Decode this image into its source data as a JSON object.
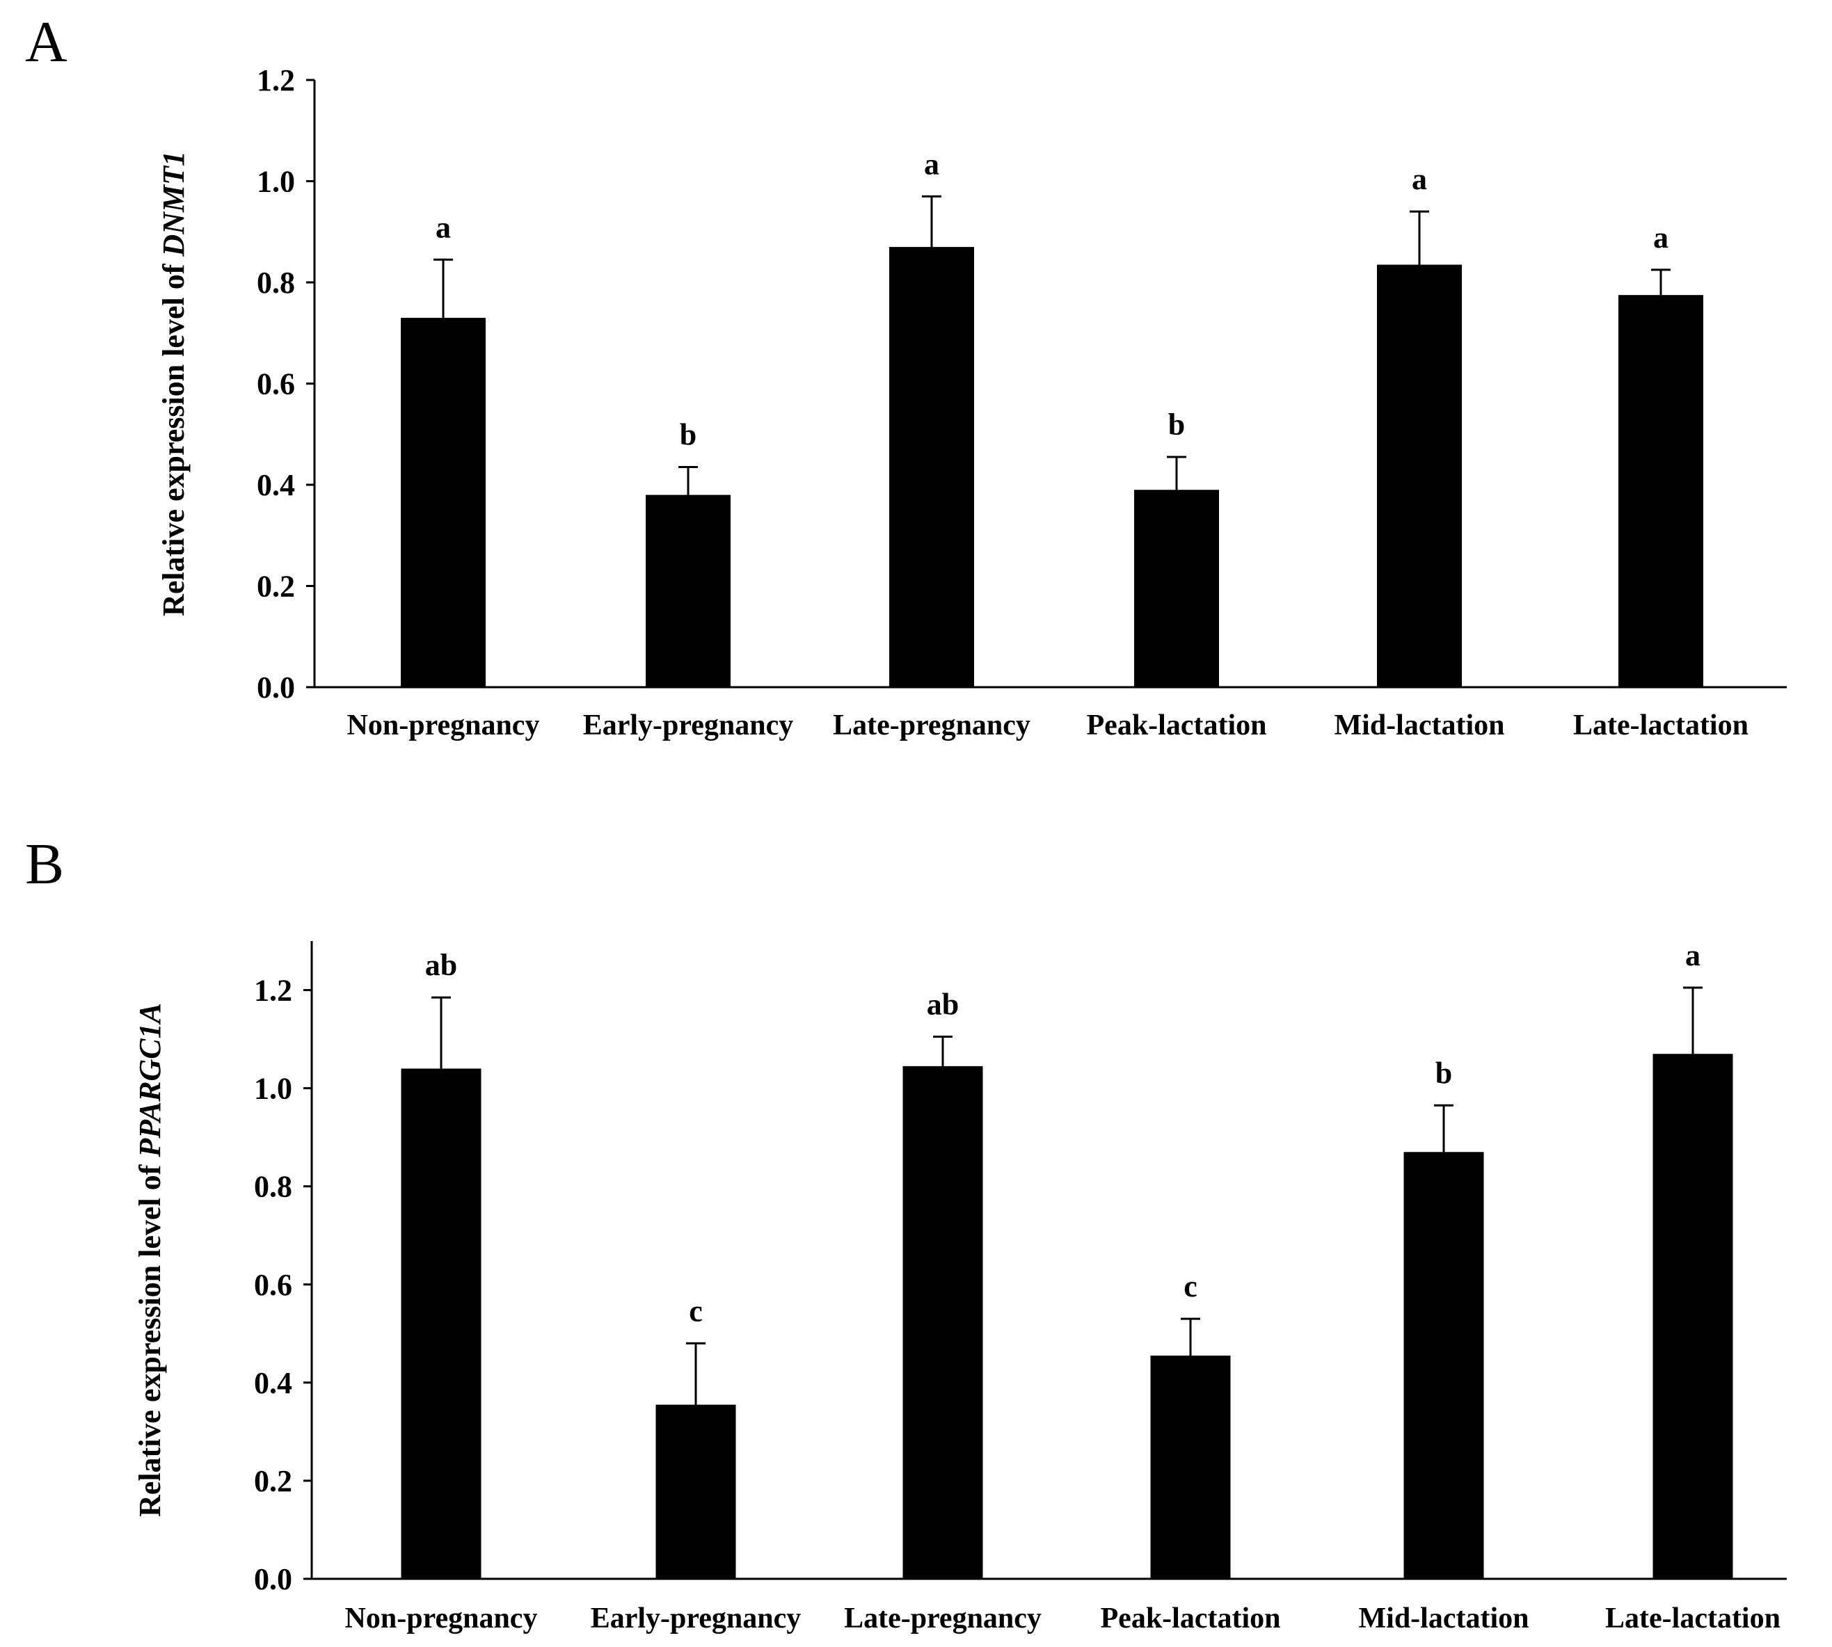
{
  "chart_data": [
    {
      "panel": "A",
      "type": "bar",
      "ylabel_prefix": "Relative expression level of ",
      "ylabel_gene": "DNMT1",
      "ylim": [
        0.0,
        1.2
      ],
      "yticks": [
        "0.0",
        "0.2",
        "0.4",
        "0.6",
        "0.8",
        "1.0",
        "1.2"
      ],
      "categories": [
        "Non-pregnancy",
        "Early-pregnancy",
        "Late-pregnancy",
        "Peak-lactation",
        "Mid-lactation",
        "Late-lactation"
      ],
      "values": [
        0.73,
        0.38,
        0.87,
        0.39,
        0.835,
        0.775
      ],
      "errors": [
        0.115,
        0.055,
        0.1,
        0.065,
        0.105,
        0.05
      ],
      "letters": [
        "a",
        "b",
        "a",
        "b",
        "a",
        "a"
      ],
      "bar_color": "#000000"
    },
    {
      "panel": "B",
      "type": "bar",
      "ylabel_prefix": "Relative expression level of ",
      "ylabel_gene": "PPARGC1A",
      "ylim": [
        0.0,
        1.3
      ],
      "yticks": [
        "0.0",
        "0.2",
        "0.4",
        "0.6",
        "0.8",
        "1.0",
        "1.2"
      ],
      "categories": [
        "Non-pregnancy",
        "Early-pregnancy",
        "Late-pregnancy",
        "Peak-lactation",
        "Mid-lactation",
        "Late-lactation"
      ],
      "values": [
        1.04,
        0.355,
        1.045,
        0.455,
        0.87,
        1.07
      ],
      "errors": [
        0.145,
        0.125,
        0.06,
        0.075,
        0.095,
        0.135
      ],
      "letters": [
        "ab",
        "c",
        "ab",
        "c",
        "b",
        "a"
      ],
      "bar_color": "#000000"
    }
  ]
}
